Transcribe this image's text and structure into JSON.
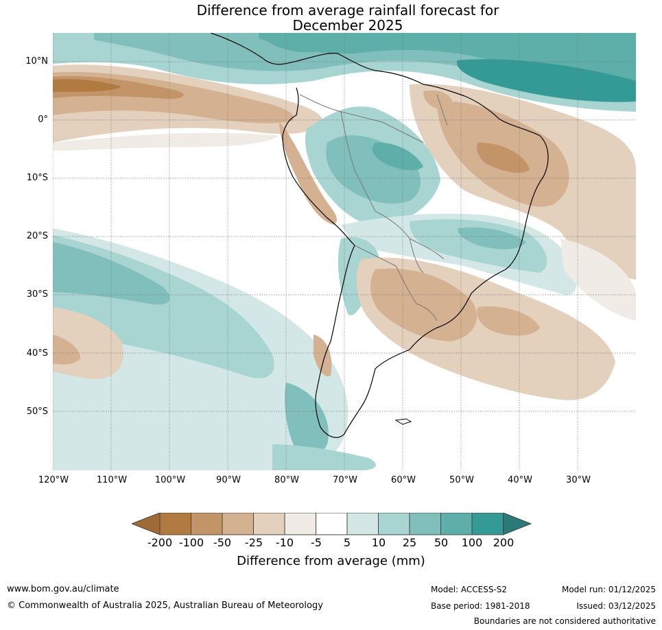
{
  "title": {
    "line1": "Difference from average rainfall forecast for",
    "line2": "December 2025"
  },
  "map": {
    "lat_labels": [
      "10°N",
      "0°",
      "10°S",
      "20°S",
      "30°S",
      "40°S",
      "50°S"
    ],
    "lon_labels": [
      "120°W",
      "110°W",
      "100°W",
      "90°W",
      "80°W",
      "70°W",
      "60°W",
      "50°W",
      "40°W",
      "30°W"
    ]
  },
  "legend": {
    "title": "Difference from average (mm)",
    "ticks": [
      "-200",
      "-100",
      "-50",
      "-25",
      "-10",
      "-5",
      "5",
      "10",
      "25",
      "50",
      "100",
      "200"
    ],
    "colors": [
      "#a06a36",
      "#b07a40",
      "#c29467",
      "#d4b191",
      "#e3d0bd",
      "#f0ebe5",
      "#ffffff",
      "#d3e8e6",
      "#a8d4d1",
      "#80bfbb",
      "#5eaeaa",
      "#339a96",
      "#2a7a78"
    ]
  },
  "footer": {
    "url": "www.bom.gov.au/climate",
    "copyright": "© Commonwealth of Australia 2025, Australian Bureau of Meteorology",
    "model": "Model: ACCESS-S2",
    "base_period": "Base period: 1981-2018",
    "model_run": "Model run: 01/12/2025",
    "issued": "Issued: 03/12/2025",
    "disclaimer": "Boundaries are not considered authoritative"
  }
}
